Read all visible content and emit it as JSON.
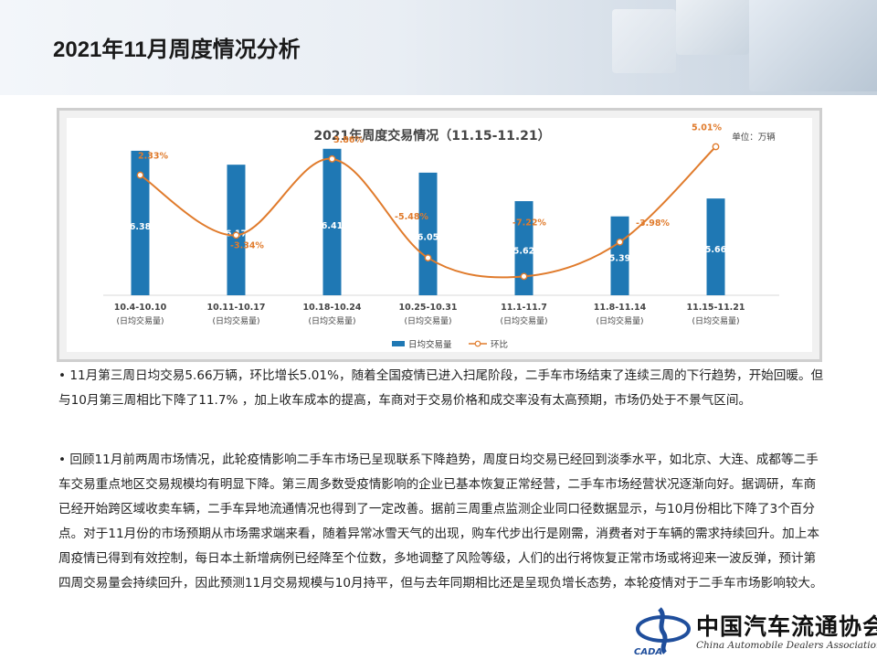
{
  "page": {
    "title": "2021年11月周度情况分析"
  },
  "chart_data": {
    "type": "bar+line",
    "title": "2021年周度交易情况（11.15-11.21）",
    "unit_label": "单位：万辆",
    "categories": [
      [
        "10.4-10.10",
        "(日均交易量)"
      ],
      [
        "10.11-10.17",
        "(日均交易量)"
      ],
      [
        "10.18-10.24",
        "(日均交易量)"
      ],
      [
        "10.25-10.31",
        "(日均交易量)"
      ],
      [
        "11.1-11.7",
        "(日均交易量)"
      ],
      [
        "11.8-11.14",
        "(日均交易量)"
      ],
      [
        "11.15-11.21",
        "(日均交易量)"
      ]
    ],
    "series": [
      {
        "name": "日均交易量",
        "kind": "bar",
        "color": "#1f78b4",
        "axis": "left",
        "values": [
          6.38,
          6.17,
          6.41,
          6.05,
          5.62,
          5.39,
          5.66
        ],
        "labels": [
          "6.38",
          "6.17",
          "6.41",
          "6.05",
          "5.62",
          "5.39",
          "5.66"
        ]
      },
      {
        "name": "环比",
        "kind": "line",
        "color": "#e07b2c",
        "axis": "right",
        "values": [
          2.33,
          -3.34,
          3.86,
          -5.48,
          -7.22,
          -3.98,
          5.01
        ],
        "labels": [
          "2.33%",
          "-3.34%",
          "3.86%",
          "-5.48%",
          "-7.22%",
          "-3.98%",
          "5.01%"
        ]
      }
    ],
    "ylim_left": [
      4.2,
      6.6
    ],
    "ylim_right": [
      -9,
      6
    ],
    "legend": [
      "日均交易量",
      "环比"
    ],
    "legend_position": "bottom-center"
  },
  "paragraphs": {
    "p1": "•      11月第三周日均交易5.66万辆，环比增长5.01%，随着全国疫情已进入扫尾阶段，二手车市场结束了连续三周的下行趋势，开始回暖。但与10月第三周相比下降了11.7%  ，加上收车成本的提高，车商对于交易价格和成交率没有太高预期，市场仍处于不景气区间。",
    "p2": "•      回顾11月前两周市场情况，此轮疫情影响二手车市场已呈现联系下降趋势，周度日均交易已经回到淡季水平，如北京、大连、成都等二手车交易重点地区交易规模均有明显下降。第三周多数受疫情影响的企业已基本恢复正常经营，二手车市场经营状况逐渐向好。据调研，车商已经开始跨区域收卖车辆，二手车异地流通情况也得到了一定改善。据前三周重点监测企业同口径数据显示，与10月份相比下降了3个百分点。对于11月份的市场预期从市场需求端来看，随着异常冰雪天气的出现，购车代步出行是刚需，消费者对于车辆的需求持续回升。加上本周疫情已得到有效控制，每日本土新增病例已经降至个位数，多地调整了风险等级，人们的出行将恢复正常市场或将迎来一波反弹，预计第四周交易量会持续回升，因此预测11月交易规模与10月持平，但与去年同期相比还是呈现负增长态势，本轮疫情对于二手车市场影响较大。"
  },
  "logo": {
    "name": "中国汽车流通协会",
    "english": "China Automobile Dealers Association",
    "mark_text": "CADA"
  },
  "colors": {
    "bar": "#1f78b4",
    "line": "#e07b2c"
  }
}
